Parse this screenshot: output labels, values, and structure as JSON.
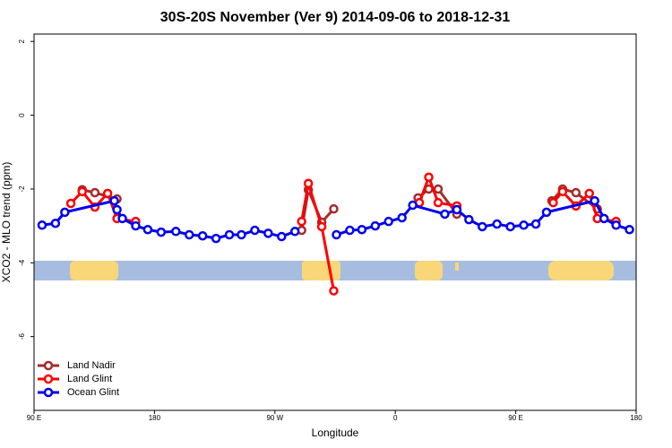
{
  "chart_data": {
    "type": "line",
    "title": "30S-20S November (Ver 9)   2014-09-06 to 2018-12-31",
    "x_label": "Longitude",
    "y_label": "XCO2 - MLO trend (ppm)",
    "xlim": [
      90,
      540
    ],
    "ylim": [
      -8.0,
      2.2
    ],
    "xticks": [
      {
        "value": 90,
        "label": "90 E"
      },
      {
        "value": 180,
        "label": "180"
      },
      {
        "value": 270,
        "label": "90 W"
      },
      {
        "value": 360,
        "label": "0"
      },
      {
        "value": 450,
        "label": "90 E"
      },
      {
        "value": 540,
        "label": "180"
      }
    ],
    "yticks": [
      2,
      0,
      -2,
      -4,
      -6
    ],
    "legend": "bottom-left",
    "series": [
      {
        "name": "Land Nadir",
        "color": "#a52a2a",
        "x": [
          126,
          135.5,
          152,
          null,
          290,
          295,
          305,
          314,
          null,
          377,
          385,
          392,
          406,
          null,
          477,
          485,
          495,
          511
        ],
        "values": [
          -2.02,
          -2.1,
          -2.27,
          null,
          -3.12,
          -2.02,
          -2.9,
          -2.54,
          null,
          -2.24,
          -2.0,
          -2.0,
          -2.68,
          null,
          -2.32,
          -2.0,
          -2.1,
          -2.54
        ]
      },
      {
        "name": "Land Glint",
        "color": "#ff0000",
        "x": [
          117.5,
          126,
          135.5,
          145,
          152,
          166,
          null,
          290,
          295,
          305,
          314,
          null,
          378,
          385,
          392,
          406,
          null,
          478,
          485,
          495,
          505,
          511,
          525
        ],
        "values": [
          -2.39,
          -2.07,
          -2.49,
          -2.12,
          -2.8,
          -2.88,
          null,
          -2.88,
          -1.85,
          -3.02,
          -4.76,
          null,
          -2.37,
          -1.68,
          -2.37,
          -2.46,
          null,
          -2.37,
          -2.07,
          -2.46,
          -2.12,
          -2.8,
          -2.88
        ]
      },
      {
        "name": "Ocean Glint",
        "color": "#0000ee",
        "x": [
          96,
          106,
          113,
          150,
          152,
          156,
          166,
          175,
          185,
          196,
          206,
          216,
          226,
          236,
          245,
          255,
          265,
          275,
          285,
          null,
          316,
          326,
          335,
          345,
          355,
          365,
          373,
          397,
          406,
          415,
          425,
          436,
          446,
          456,
          465,
          473,
          509,
          516,
          525,
          535
        ],
        "values": [
          -2.98,
          -2.93,
          -2.63,
          -2.32,
          -2.56,
          -2.8,
          -3.0,
          -3.1,
          -3.17,
          -3.15,
          -3.24,
          -3.27,
          -3.34,
          -3.24,
          -3.24,
          -3.12,
          -3.2,
          -3.29,
          -3.15,
          null,
          -3.24,
          -3.12,
          -3.1,
          -3.0,
          -2.88,
          -2.78,
          -2.44,
          -2.68,
          -2.56,
          -2.83,
          -3.02,
          -2.95,
          -3.02,
          -2.98,
          -2.95,
          -2.63,
          -2.32,
          -2.8,
          -2.98,
          -3.1
        ]
      }
    ]
  }
}
